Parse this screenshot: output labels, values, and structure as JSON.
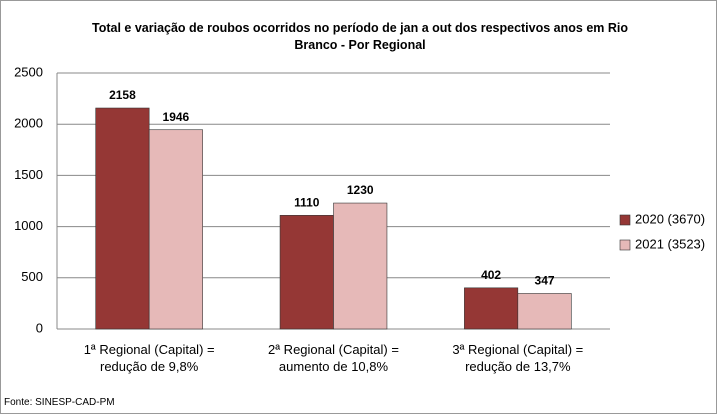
{
  "chart_data": {
    "type": "bar",
    "title": "Total e variação de roubos ocorridos no período de jan a out dos respectivos anos em Rio\nBranco - Por Regional",
    "categories": [
      "1ª Regional (Capital) =\nredução de 9,8%",
      "2ª Regional (Capital) =\naumento de 10,8%",
      "3ª Regional (Capital) =\nredução de 13,7%"
    ],
    "series": [
      {
        "name": "2020 (3670)",
        "color": "#953735",
        "values": [
          2158,
          1110,
          402
        ]
      },
      {
        "name": "2021 (3523)",
        "color": "#e6b9b8",
        "values": [
          1946,
          1230,
          347
        ]
      }
    ],
    "ylim": [
      0,
      2500
    ],
    "yticks": [
      0,
      500,
      1000,
      1500,
      2000,
      2500
    ],
    "grid": true,
    "legend": "right",
    "source": "Fonte: SINESP-CAD-PM"
  }
}
